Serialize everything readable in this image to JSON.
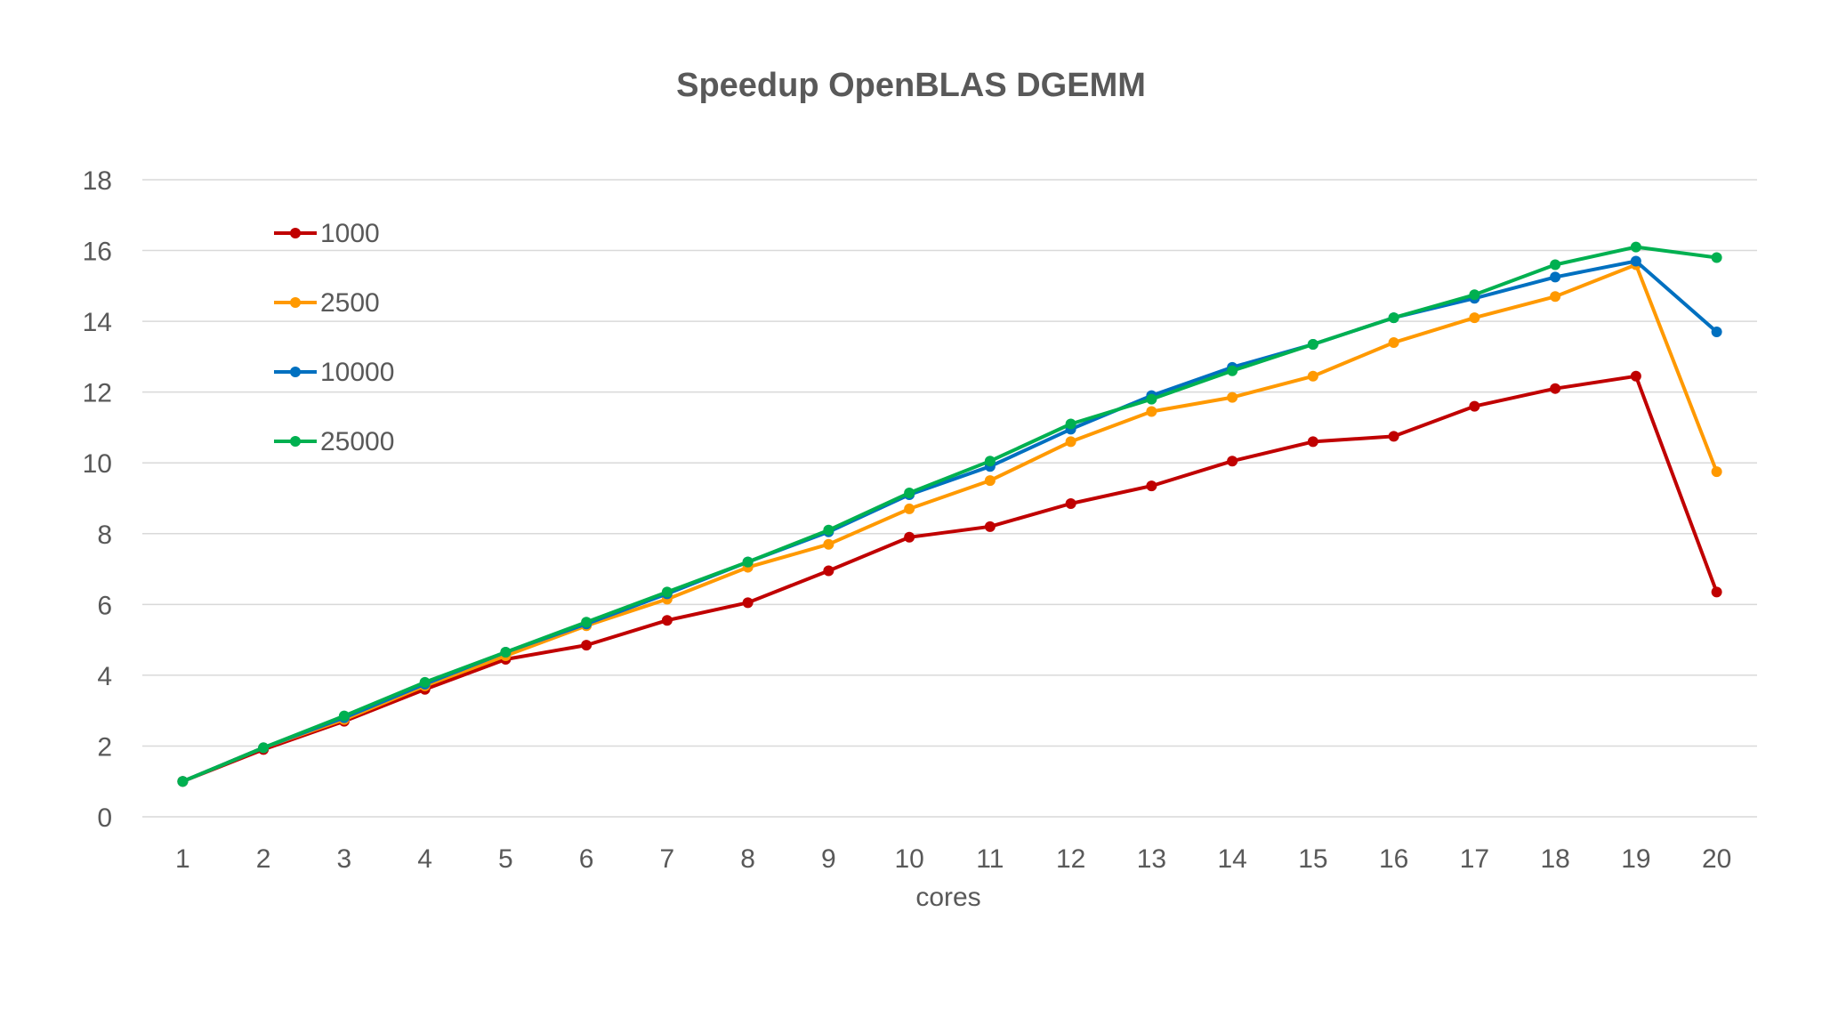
{
  "chart_data": {
    "type": "line",
    "title": "Speedup OpenBLAS DGEMM",
    "xlabel": "cores",
    "ylabel": "",
    "x": [
      1,
      2,
      3,
      4,
      5,
      6,
      7,
      8,
      9,
      10,
      11,
      12,
      13,
      14,
      15,
      16,
      17,
      18,
      19,
      20
    ],
    "ylim": [
      0,
      18
    ],
    "yticks": [
      0,
      2,
      4,
      6,
      8,
      10,
      12,
      14,
      16,
      18
    ],
    "grid": true,
    "legend_position": "top-left",
    "series": [
      {
        "name": "1000",
        "color": "#c00000",
        "values": [
          1.0,
          1.9,
          2.7,
          3.6,
          4.45,
          4.85,
          5.55,
          6.05,
          6.95,
          7.9,
          8.2,
          8.85,
          9.35,
          10.05,
          10.6,
          10.75,
          11.6,
          12.1,
          12.45,
          6.35
        ]
      },
      {
        "name": "2500",
        "color": "#ff9900",
        "values": [
          1.0,
          1.95,
          2.75,
          3.7,
          4.55,
          5.4,
          6.15,
          7.05,
          7.7,
          8.7,
          9.5,
          10.6,
          11.45,
          11.85,
          12.45,
          13.4,
          14.1,
          14.7,
          15.6,
          9.75
        ]
      },
      {
        "name": "10000",
        "color": "#0070c0",
        "values": [
          1.0,
          1.95,
          2.8,
          3.75,
          4.65,
          5.45,
          6.3,
          7.2,
          8.05,
          9.1,
          9.9,
          10.95,
          11.9,
          12.7,
          13.35,
          14.1,
          14.65,
          15.25,
          15.7,
          13.7
        ]
      },
      {
        "name": "25000",
        "color": "#00b050",
        "values": [
          1.0,
          1.95,
          2.85,
          3.8,
          4.65,
          5.5,
          6.35,
          7.2,
          8.1,
          9.15,
          10.05,
          11.1,
          11.8,
          12.6,
          13.35,
          14.1,
          14.75,
          15.6,
          16.1,
          15.8
        ]
      }
    ]
  }
}
